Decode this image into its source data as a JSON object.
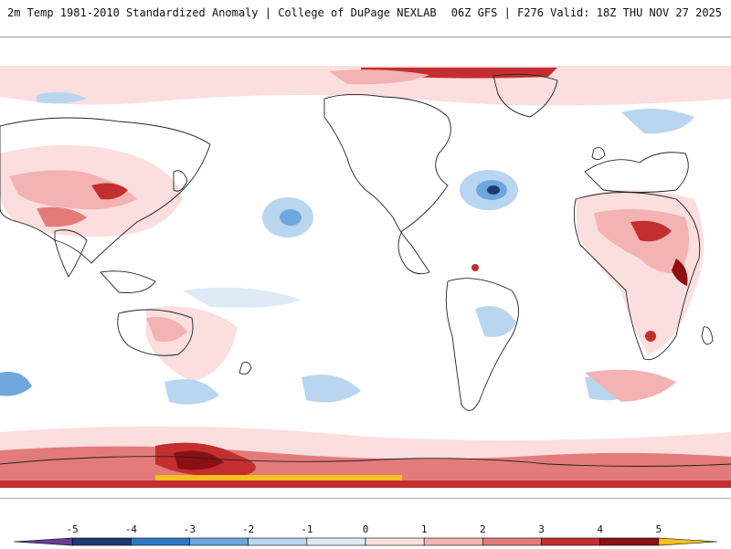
{
  "header": {
    "title": "2m Temp 1981-2010 Standardized Anomaly | College of DuPage NEXLAB",
    "run_info": "06Z GFS | F276 Valid: 18Z THU NOV 27 2025"
  },
  "colors": {
    "neg5": "#6a3d9a",
    "neg4": "#1f3a70",
    "neg3": "#2f78c4",
    "neg2": "#6ea7dc",
    "neg1": "#b9d5f0",
    "neg05": "#dfeaf7",
    "zero": "#ffffff",
    "pos05": "#fbdede",
    "pos1": "#f3b3b3",
    "pos2": "#e37b7b",
    "pos3": "#c32f2f",
    "pos4": "#8b0f14",
    "pos5": "#f4c020",
    "land": "#222222"
  },
  "colorbar": {
    "ticks": [
      "-5",
      "-4",
      "-3",
      "-2",
      "-1",
      "0",
      "1",
      "2",
      "3",
      "4",
      "5"
    ],
    "segments": [
      "#6a3d9a",
      "#1f3a70",
      "#2f78c4",
      "#6ea7dc",
      "#b9d5f0",
      "#dfeaf7",
      "#fbdede",
      "#f3b3b3",
      "#e37b7b",
      "#c32f2f",
      "#8b0f14",
      "#f4c020"
    ]
  },
  "chart_data": {
    "type": "heatmap",
    "title": "2m Temp 1981-2010 Standardized Anomaly",
    "colorbar_range": [
      -5,
      5
    ],
    "projection": "pacific-centered cylindrical"
  }
}
